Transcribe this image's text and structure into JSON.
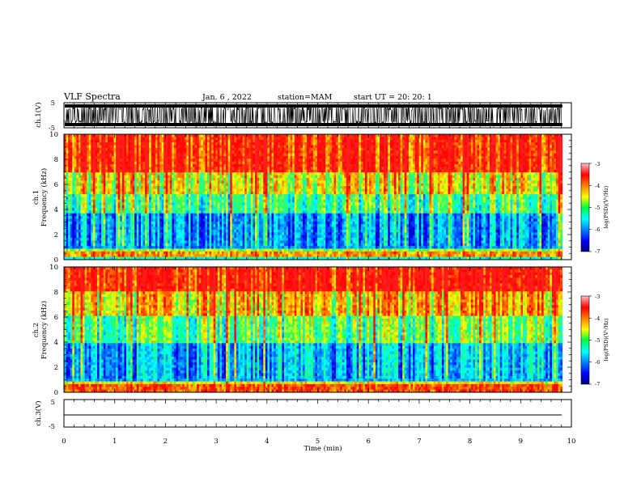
{
  "header": {
    "title": "VLF Spectra",
    "date": "Jan. 6 , 2022",
    "station": "station=MAM",
    "start_ut": "start UT = 20: 20: 1"
  },
  "chart_data": [
    {
      "type": "line",
      "name": "ch1-waveform",
      "ylabel": "ch.1(V)",
      "ylim": [
        -5,
        5
      ],
      "yticks": [
        "5",
        "-5"
      ],
      "xlim": [
        0,
        10
      ]
    },
    {
      "type": "heatmap",
      "name": "ch1-spectrogram",
      "ylabel": "ch.1 Frequency (kHz)",
      "ylim": [
        0,
        10
      ],
      "yticks": [
        "0",
        "2",
        "4",
        "6",
        "8",
        "10"
      ],
      "xlim": [
        0,
        10
      ],
      "colorbar": {
        "label": "log(PSD)(V²/Hz)",
        "range": [
          -7,
          -3
        ],
        "ticks": [
          "-3",
          "-4",
          "-5",
          "-6",
          "-7"
        ]
      }
    },
    {
      "type": "heatmap",
      "name": "ch2-spectrogram",
      "ylabel": "ch.2 Frequency (kHz)",
      "ylim": [
        0,
        10
      ],
      "yticks": [
        "0",
        "2",
        "4",
        "6",
        "8",
        "10"
      ],
      "xlim": [
        0,
        10
      ],
      "colorbar": {
        "label": "log(PSD)(V²/Hz)",
        "range": [
          -7,
          -3
        ],
        "ticks": [
          "-3",
          "-4",
          "-5",
          "-6",
          "-7"
        ]
      }
    },
    {
      "type": "line",
      "name": "ch3-waveform",
      "ylabel": "ch.3(V)",
      "ylim": [
        -5,
        5
      ],
      "yticks": [
        "5",
        "-5"
      ],
      "level": 0,
      "xlim": [
        0,
        10
      ]
    }
  ],
  "xaxis": {
    "label": "Time (min)",
    "ticks": [
      "0",
      "1",
      "2",
      "3",
      "4",
      "5",
      "6",
      "7",
      "8",
      "9",
      "10"
    ]
  },
  "axis_labels": {
    "ch1_wave": "ch.1(V)",
    "ch1_spec_a": "ch.1",
    "ch1_spec_b": "Frequency (kHz)",
    "ch2_spec_a": "ch.2",
    "ch2_spec_b": "Frequency (kHz)",
    "ch3_wave": "ch.3(V)",
    "cb_label": "log(PSD)(V²/Hz)"
  }
}
